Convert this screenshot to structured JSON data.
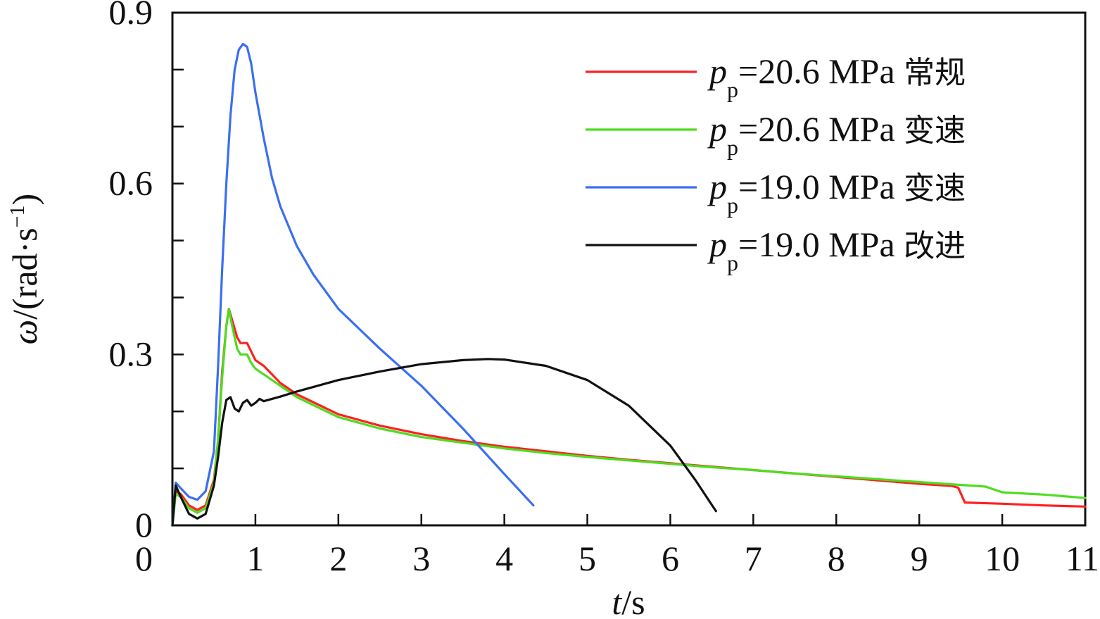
{
  "chart_data": {
    "type": "line",
    "xlabel": {
      "var": "t",
      "unit": "/s"
    },
    "ylabel": {
      "var": "ω",
      "unit_prefix": "/(rad·s",
      "unit_sup": "−1",
      "unit_suffix": ")"
    },
    "xlim": [
      0,
      11
    ],
    "ylim": [
      0,
      0.9
    ],
    "x_ticks": [
      0,
      1,
      2,
      3,
      4,
      5,
      6,
      7,
      8,
      9,
      10,
      11
    ],
    "x_tick_labels": [
      "0",
      "1",
      "2",
      "3",
      "4",
      "5",
      "6",
      "7",
      "8",
      "9",
      "10",
      "11"
    ],
    "y_ticks": [
      0.1,
      0.2,
      0.3,
      0.4,
      0.5,
      0.6,
      0.7,
      0.8,
      0.9
    ],
    "y_tick_labels": [
      {
        "value": 0,
        "label": "0"
      },
      {
        "value": 0.3,
        "label": "0.3"
      },
      {
        "value": 0.6,
        "label": "0.6"
      },
      {
        "value": 0.9,
        "label": "0.9"
      }
    ],
    "grid": false,
    "legend_position": "top-right",
    "series": [
      {
        "name": "p_p=20.6 MPa 常规",
        "legend": {
          "var": "p",
          "sub": "p",
          "value": "=20.6 MPa",
          "tag": "常规"
        },
        "color": "#ff2020",
        "points": [
          [
            0,
            0
          ],
          [
            0.04,
            0.06
          ],
          [
            0.1,
            0.055
          ],
          [
            0.2,
            0.035
          ],
          [
            0.3,
            0.027
          ],
          [
            0.4,
            0.035
          ],
          [
            0.5,
            0.08
          ],
          [
            0.55,
            0.15
          ],
          [
            0.6,
            0.27
          ],
          [
            0.65,
            0.35
          ],
          [
            0.68,
            0.38
          ],
          [
            0.72,
            0.36
          ],
          [
            0.78,
            0.33
          ],
          [
            0.82,
            0.32
          ],
          [
            0.9,
            0.32
          ],
          [
            0.95,
            0.305
          ],
          [
            1.0,
            0.29
          ],
          [
            1.1,
            0.28
          ],
          [
            1.2,
            0.265
          ],
          [
            1.3,
            0.25
          ],
          [
            1.5,
            0.23
          ],
          [
            2,
            0.195
          ],
          [
            2.5,
            0.175
          ],
          [
            3,
            0.16
          ],
          [
            3.5,
            0.148
          ],
          [
            4,
            0.138
          ],
          [
            4.5,
            0.13
          ],
          [
            5,
            0.122
          ],
          [
            5.5,
            0.115
          ],
          [
            6,
            0.109
          ],
          [
            6.5,
            0.103
          ],
          [
            7,
            0.097
          ],
          [
            7.5,
            0.091
          ],
          [
            8,
            0.085
          ],
          [
            8.5,
            0.079
          ],
          [
            9,
            0.073
          ],
          [
            9.4,
            0.069
          ],
          [
            9.47,
            0.066
          ],
          [
            9.55,
            0.04
          ],
          [
            10,
            0.038
          ],
          [
            10.5,
            0.035
          ],
          [
            11,
            0.033
          ]
        ]
      },
      {
        "name": "p_p=20.6 MPa 变速",
        "legend": {
          "var": "p",
          "sub": "p",
          "value": "=20.6 MPa",
          "tag": "变速"
        },
        "color": "#4ddd20",
        "points": [
          [
            0,
            0
          ],
          [
            0.04,
            0.055
          ],
          [
            0.1,
            0.05
          ],
          [
            0.2,
            0.03
          ],
          [
            0.3,
            0.022
          ],
          [
            0.4,
            0.03
          ],
          [
            0.5,
            0.075
          ],
          [
            0.55,
            0.15
          ],
          [
            0.6,
            0.26
          ],
          [
            0.65,
            0.35
          ],
          [
            0.68,
            0.38
          ],
          [
            0.72,
            0.35
          ],
          [
            0.78,
            0.31
          ],
          [
            0.82,
            0.3
          ],
          [
            0.9,
            0.3
          ],
          [
            0.95,
            0.285
          ],
          [
            1.0,
            0.275
          ],
          [
            1.1,
            0.265
          ],
          [
            1.2,
            0.255
          ],
          [
            1.3,
            0.245
          ],
          [
            1.5,
            0.225
          ],
          [
            2,
            0.19
          ],
          [
            2.5,
            0.17
          ],
          [
            3,
            0.155
          ],
          [
            3.5,
            0.145
          ],
          [
            4,
            0.135
          ],
          [
            4.5,
            0.127
          ],
          [
            5,
            0.12
          ],
          [
            5.5,
            0.114
          ],
          [
            6,
            0.108
          ],
          [
            6.5,
            0.102
          ],
          [
            7,
            0.097
          ],
          [
            7.5,
            0.091
          ],
          [
            8,
            0.086
          ],
          [
            8.5,
            0.081
          ],
          [
            9,
            0.076
          ],
          [
            9.5,
            0.071
          ],
          [
            9.8,
            0.068
          ],
          [
            10,
            0.058
          ],
          [
            10.5,
            0.054
          ],
          [
            11,
            0.048
          ]
        ]
      },
      {
        "name": "p_p=19.0 MPa 变速",
        "legend": {
          "var": "p",
          "sub": "p",
          "value": "=19.0 MPa",
          "tag": "变速"
        },
        "color": "#3a6ff0",
        "points": [
          [
            0,
            0
          ],
          [
            0.04,
            0.075
          ],
          [
            0.1,
            0.065
          ],
          [
            0.2,
            0.05
          ],
          [
            0.3,
            0.045
          ],
          [
            0.4,
            0.06
          ],
          [
            0.5,
            0.13
          ],
          [
            0.55,
            0.28
          ],
          [
            0.6,
            0.45
          ],
          [
            0.65,
            0.6
          ],
          [
            0.7,
            0.72
          ],
          [
            0.75,
            0.8
          ],
          [
            0.8,
            0.835
          ],
          [
            0.85,
            0.845
          ],
          [
            0.9,
            0.84
          ],
          [
            0.95,
            0.81
          ],
          [
            1.0,
            0.76
          ],
          [
            1.1,
            0.68
          ],
          [
            1.2,
            0.61
          ],
          [
            1.3,
            0.56
          ],
          [
            1.5,
            0.49
          ],
          [
            1.7,
            0.44
          ],
          [
            2,
            0.38
          ],
          [
            2.5,
            0.31
          ],
          [
            3,
            0.245
          ],
          [
            3.5,
            0.17
          ],
          [
            4,
            0.09
          ],
          [
            4.35,
            0.035
          ]
        ]
      },
      {
        "name": "p_p=19.0 MPa 改进",
        "legend": {
          "var": "p",
          "sub": "p",
          "value": "=19.0 MPa",
          "tag": "改进"
        },
        "color": "#111111",
        "points": [
          [
            0,
            0
          ],
          [
            0.04,
            0.07
          ],
          [
            0.1,
            0.05
          ],
          [
            0.2,
            0.02
          ],
          [
            0.3,
            0.012
          ],
          [
            0.4,
            0.02
          ],
          [
            0.5,
            0.07
          ],
          [
            0.55,
            0.12
          ],
          [
            0.6,
            0.18
          ],
          [
            0.65,
            0.22
          ],
          [
            0.7,
            0.225
          ],
          [
            0.75,
            0.205
          ],
          [
            0.8,
            0.2
          ],
          [
            0.85,
            0.215
          ],
          [
            0.9,
            0.22
          ],
          [
            0.95,
            0.21
          ],
          [
            1.0,
            0.215
          ],
          [
            1.05,
            0.222
          ],
          [
            1.1,
            0.218
          ],
          [
            1.2,
            0.222
          ],
          [
            1.3,
            0.226
          ],
          [
            1.5,
            0.235
          ],
          [
            2,
            0.255
          ],
          [
            2.5,
            0.27
          ],
          [
            3,
            0.283
          ],
          [
            3.5,
            0.29
          ],
          [
            3.8,
            0.292
          ],
          [
            4,
            0.291
          ],
          [
            4.5,
            0.28
          ],
          [
            5,
            0.255
          ],
          [
            5.5,
            0.21
          ],
          [
            6,
            0.14
          ],
          [
            6.3,
            0.08
          ],
          [
            6.55,
            0.025
          ]
        ]
      }
    ]
  }
}
